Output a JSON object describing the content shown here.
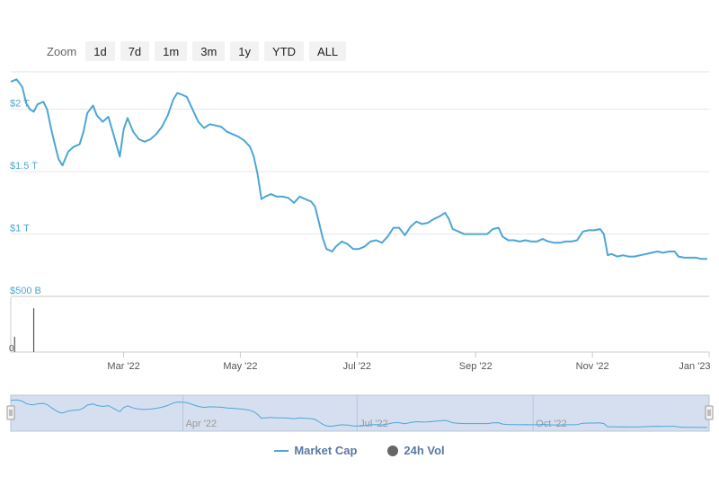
{
  "zoom": {
    "label": "Zoom",
    "buttons": [
      "1d",
      "7d",
      "1m",
      "3m",
      "1y",
      "YTD",
      "ALL"
    ]
  },
  "colors": {
    "market_cap": "#4da6d6",
    "volume": "#555555",
    "navigator_fill": "#d6dff0",
    "grid": "#e6e6e6",
    "axis_label": "#4da6d6",
    "x_label": "#555555"
  },
  "legend": {
    "market_cap": "Market Cap",
    "volume": "24h Vol"
  },
  "chart_data": {
    "type": "line",
    "title": "",
    "xlabel": "",
    "ylabel": "",
    "x_range": [
      "2022-01-01",
      "2023-01-01"
    ],
    "y_range_trillions": [
      0.5,
      2.3
    ],
    "y_ticks": [
      {
        "value": 2.0,
        "label": "$2 T"
      },
      {
        "value": 1.5,
        "label": "$1.5 T"
      },
      {
        "value": 1.0,
        "label": "$1 T"
      },
      {
        "value": 0.5,
        "label": "$500 B"
      }
    ],
    "x_ticks": [
      {
        "date": "2022-03-01",
        "label": "Mar '22"
      },
      {
        "date": "2022-05-01",
        "label": "May '22"
      },
      {
        "date": "2022-07-01",
        "label": "Jul '22"
      },
      {
        "date": "2022-09-01",
        "label": "Sep '22"
      },
      {
        "date": "2022-11-01",
        "label": "Nov '22"
      },
      {
        "date": "2023-01-01",
        "label": "Jan '23"
      }
    ],
    "navigator_ticks": [
      {
        "date": "2022-04-01",
        "label": "Apr '22"
      },
      {
        "date": "2022-07-01",
        "label": "Jul '22"
      },
      {
        "date": "2022-10-01",
        "label": "Oct '22"
      }
    ],
    "volume_axis_label": "0",
    "volume_spikes": [
      {
        "date": "2022-01-03",
        "value": 0.28
      },
      {
        "date": "2022-01-13",
        "value": 0.8
      }
    ],
    "series": [
      {
        "name": "Market Cap",
        "points": [
          [
            "2022-01-01",
            2.22
          ],
          [
            "2022-01-04",
            2.24
          ],
          [
            "2022-01-07",
            2.18
          ],
          [
            "2022-01-09",
            2.05
          ],
          [
            "2022-01-11",
            2.0
          ],
          [
            "2022-01-13",
            1.98
          ],
          [
            "2022-01-15",
            2.04
          ],
          [
            "2022-01-18",
            2.06
          ],
          [
            "2022-01-20",
            2.0
          ],
          [
            "2022-01-22",
            1.85
          ],
          [
            "2022-01-24",
            1.72
          ],
          [
            "2022-01-26",
            1.6
          ],
          [
            "2022-01-28",
            1.55
          ],
          [
            "2022-01-31",
            1.66
          ],
          [
            "2022-02-03",
            1.7
          ],
          [
            "2022-02-06",
            1.72
          ],
          [
            "2022-02-08",
            1.82
          ],
          [
            "2022-02-10",
            1.97
          ],
          [
            "2022-02-13",
            2.03
          ],
          [
            "2022-02-15",
            1.95
          ],
          [
            "2022-02-18",
            1.9
          ],
          [
            "2022-02-21",
            1.94
          ],
          [
            "2022-02-24",
            1.78
          ],
          [
            "2022-02-27",
            1.62
          ],
          [
            "2022-03-01",
            1.84
          ],
          [
            "2022-03-03",
            1.93
          ],
          [
            "2022-03-06",
            1.82
          ],
          [
            "2022-03-09",
            1.76
          ],
          [
            "2022-03-12",
            1.74
          ],
          [
            "2022-03-15",
            1.76
          ],
          [
            "2022-03-18",
            1.8
          ],
          [
            "2022-03-21",
            1.86
          ],
          [
            "2022-03-24",
            1.95
          ],
          [
            "2022-03-27",
            2.08
          ],
          [
            "2022-03-29",
            2.13
          ],
          [
            "2022-03-31",
            2.12
          ],
          [
            "2022-04-03",
            2.1
          ],
          [
            "2022-04-06",
            2.0
          ],
          [
            "2022-04-09",
            1.9
          ],
          [
            "2022-04-12",
            1.85
          ],
          [
            "2022-04-15",
            1.88
          ],
          [
            "2022-04-18",
            1.87
          ],
          [
            "2022-04-21",
            1.86
          ],
          [
            "2022-04-24",
            1.82
          ],
          [
            "2022-04-27",
            1.8
          ],
          [
            "2022-04-30",
            1.78
          ],
          [
            "2022-05-03",
            1.75
          ],
          [
            "2022-05-06",
            1.7
          ],
          [
            "2022-05-08",
            1.62
          ],
          [
            "2022-05-10",
            1.48
          ],
          [
            "2022-05-12",
            1.28
          ],
          [
            "2022-05-14",
            1.3
          ],
          [
            "2022-05-17",
            1.32
          ],
          [
            "2022-05-20",
            1.3
          ],
          [
            "2022-05-23",
            1.3
          ],
          [
            "2022-05-26",
            1.29
          ],
          [
            "2022-05-29",
            1.25
          ],
          [
            "2022-06-01",
            1.3
          ],
          [
            "2022-06-04",
            1.28
          ],
          [
            "2022-06-07",
            1.26
          ],
          [
            "2022-06-09",
            1.22
          ],
          [
            "2022-06-11",
            1.1
          ],
          [
            "2022-06-13",
            0.97
          ],
          [
            "2022-06-15",
            0.88
          ],
          [
            "2022-06-18",
            0.86
          ],
          [
            "2022-06-20",
            0.9
          ],
          [
            "2022-06-23",
            0.94
          ],
          [
            "2022-06-26",
            0.92
          ],
          [
            "2022-06-29",
            0.88
          ],
          [
            "2022-07-02",
            0.88
          ],
          [
            "2022-07-05",
            0.9
          ],
          [
            "2022-07-08",
            0.94
          ],
          [
            "2022-07-11",
            0.95
          ],
          [
            "2022-07-14",
            0.93
          ],
          [
            "2022-07-17",
            0.98
          ],
          [
            "2022-07-20",
            1.05
          ],
          [
            "2022-07-23",
            1.05
          ],
          [
            "2022-07-26",
            0.99
          ],
          [
            "2022-07-29",
            1.06
          ],
          [
            "2022-08-01",
            1.1
          ],
          [
            "2022-08-04",
            1.08
          ],
          [
            "2022-08-07",
            1.09
          ],
          [
            "2022-08-10",
            1.12
          ],
          [
            "2022-08-13",
            1.14
          ],
          [
            "2022-08-16",
            1.17
          ],
          [
            "2022-08-18",
            1.12
          ],
          [
            "2022-08-20",
            1.04
          ],
          [
            "2022-08-23",
            1.02
          ],
          [
            "2022-08-26",
            1.0
          ],
          [
            "2022-08-29",
            1.0
          ],
          [
            "2022-09-01",
            1.0
          ],
          [
            "2022-09-04",
            1.0
          ],
          [
            "2022-09-07",
            1.0
          ],
          [
            "2022-09-10",
            1.04
          ],
          [
            "2022-09-13",
            1.05
          ],
          [
            "2022-09-15",
            0.98
          ],
          [
            "2022-09-18",
            0.95
          ],
          [
            "2022-09-21",
            0.95
          ],
          [
            "2022-09-24",
            0.94
          ],
          [
            "2022-09-27",
            0.95
          ],
          [
            "2022-09-30",
            0.94
          ],
          [
            "2022-10-03",
            0.94
          ],
          [
            "2022-10-06",
            0.96
          ],
          [
            "2022-10-09",
            0.94
          ],
          [
            "2022-10-12",
            0.93
          ],
          [
            "2022-10-15",
            0.93
          ],
          [
            "2022-10-18",
            0.94
          ],
          [
            "2022-10-21",
            0.94
          ],
          [
            "2022-10-24",
            0.95
          ],
          [
            "2022-10-27",
            1.02
          ],
          [
            "2022-10-30",
            1.03
          ],
          [
            "2022-11-02",
            1.03
          ],
          [
            "2022-11-05",
            1.04
          ],
          [
            "2022-11-07",
            1.0
          ],
          [
            "2022-11-09",
            0.83
          ],
          [
            "2022-11-11",
            0.84
          ],
          [
            "2022-11-14",
            0.82
          ],
          [
            "2022-11-17",
            0.83
          ],
          [
            "2022-11-20",
            0.82
          ],
          [
            "2022-11-23",
            0.82
          ],
          [
            "2022-11-26",
            0.83
          ],
          [
            "2022-11-29",
            0.84
          ],
          [
            "2022-12-02",
            0.85
          ],
          [
            "2022-12-05",
            0.86
          ],
          [
            "2022-12-08",
            0.85
          ],
          [
            "2022-12-11",
            0.86
          ],
          [
            "2022-12-14",
            0.86
          ],
          [
            "2022-12-16",
            0.82
          ],
          [
            "2022-12-19",
            0.81
          ],
          [
            "2022-12-22",
            0.81
          ],
          [
            "2022-12-25",
            0.81
          ],
          [
            "2022-12-28",
            0.8
          ],
          [
            "2022-12-31",
            0.8
          ]
        ]
      }
    ]
  }
}
